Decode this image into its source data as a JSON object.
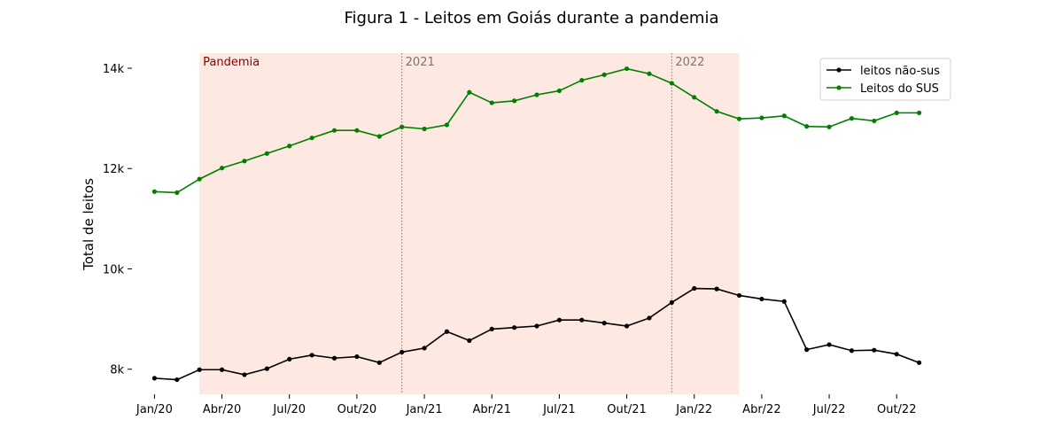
{
  "chart_data": {
    "type": "line",
    "title": "Figura 1 - Leitos em Goiás durante a pandemia",
    "xlabel": "",
    "ylabel": "Total de leitos",
    "x": [
      "2020-01",
      "2020-02",
      "2020-03",
      "2020-04",
      "2020-05",
      "2020-06",
      "2020-07",
      "2020-08",
      "2020-09",
      "2020-10",
      "2020-11",
      "2020-12",
      "2021-01",
      "2021-02",
      "2021-03",
      "2021-04",
      "2021-05",
      "2021-06",
      "2021-07",
      "2021-08",
      "2021-09",
      "2021-10",
      "2021-11",
      "2021-12",
      "2022-01",
      "2022-02",
      "2022-03",
      "2022-04",
      "2022-05",
      "2022-06",
      "2022-07",
      "2022-08",
      "2022-09",
      "2022-10",
      "2022-11"
    ],
    "x_ticks": [
      {
        "x": "2020-01",
        "label": "Jan/20"
      },
      {
        "x": "2020-04",
        "label": "Abr/20"
      },
      {
        "x": "2020-07",
        "label": "Jul/20"
      },
      {
        "x": "2020-10",
        "label": "Out/20"
      },
      {
        "x": "2021-01",
        "label": "Jan/21"
      },
      {
        "x": "2021-04",
        "label": "Abr/21"
      },
      {
        "x": "2021-07",
        "label": "Jul/21"
      },
      {
        "x": "2021-10",
        "label": "Out/21"
      },
      {
        "x": "2022-01",
        "label": "Jan/22"
      },
      {
        "x": "2022-04",
        "label": "Abr/22"
      },
      {
        "x": "2022-07",
        "label": "Jul/22"
      },
      {
        "x": "2022-10",
        "label": "Out/22"
      }
    ],
    "y_ticks": [
      {
        "value": 8000,
        "label": "8k"
      },
      {
        "value": 10000,
        "label": "10k"
      },
      {
        "value": 12000,
        "label": "12k"
      },
      {
        "value": 14000,
        "label": "14k"
      }
    ],
    "ylim": [
      7500,
      14300
    ],
    "xlim": [
      "2019-12",
      "2022-12"
    ],
    "grid": false,
    "legend_position": "top-right",
    "series": [
      {
        "name": "leitos não-sus",
        "color": "#000000",
        "values": [
          7820,
          7790,
          7990,
          7990,
          7890,
          8010,
          8200,
          8280,
          8220,
          8250,
          8130,
          8340,
          8420,
          8750,
          8570,
          8800,
          8830,
          8860,
          8980,
          8980,
          8920,
          8860,
          9020,
          9330,
          9610,
          9600,
          9470,
          9400,
          9350,
          8390,
          8490,
          8370,
          8380,
          8300,
          8130
        ]
      },
      {
        "name": "Leitos do SUS",
        "color": "#008000",
        "values": [
          11540,
          11520,
          11790,
          12010,
          12150,
          12300,
          12450,
          12610,
          12760,
          12760,
          12640,
          12830,
          12790,
          12870,
          13520,
          13310,
          13350,
          13470,
          13550,
          13760,
          13870,
          13990,
          13890,
          13700,
          13420,
          13140,
          12990,
          13010,
          13050,
          12840,
          12830,
          13000,
          12950,
          13110,
          13110
        ]
      }
    ],
    "shaded_region": {
      "start": "2020-03",
      "end": "2022-03",
      "label": "Pandemia",
      "color": "#fde9e1",
      "label_color": "#8b0000"
    },
    "vlines": [
      {
        "x": "2020-12",
        "label": "2021",
        "color": "#777777"
      },
      {
        "x": "2021-12",
        "label": "2022",
        "color": "#777777"
      }
    ]
  }
}
